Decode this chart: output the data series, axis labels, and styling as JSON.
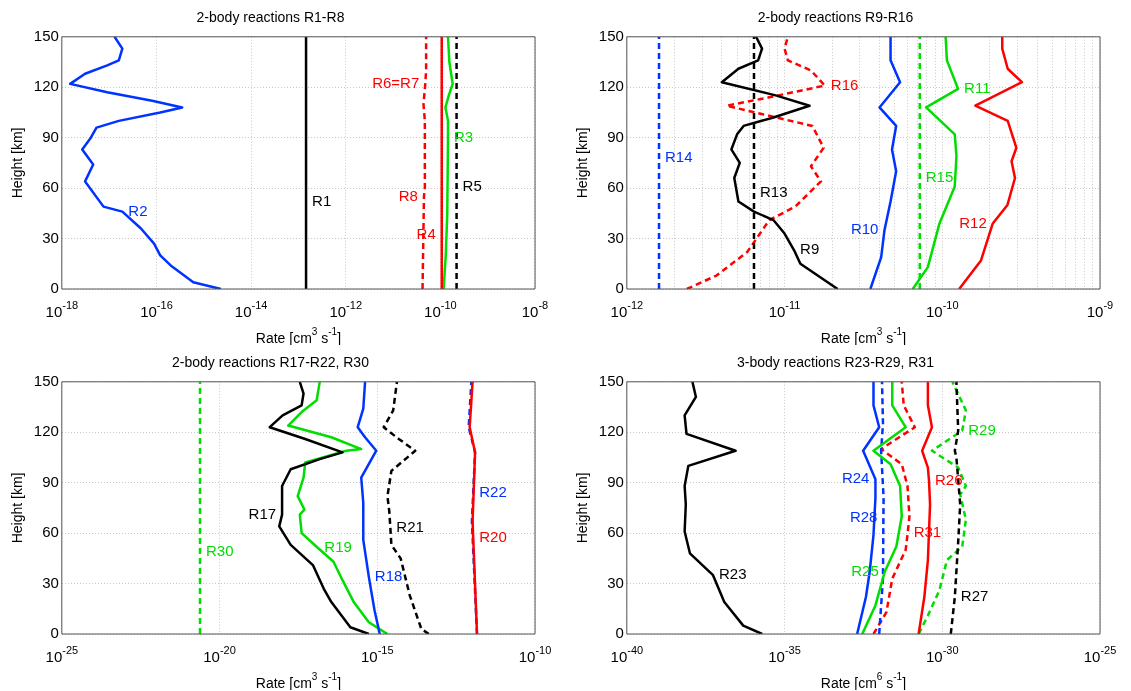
{
  "chart_data": [
    {
      "type": "line",
      "title": "2-body reactions R1-R8",
      "xlabel": "Rate [cm$^{3}$ s$^{-1}$]",
      "ylabel": "Height [km]",
      "log": "x",
      "grid": true,
      "marker": "none",
      "xlim": [
        1e-18,
        1e-08
      ],
      "ylim": [
        0,
        150
      ],
      "xticks": [
        {
          "value": 1e-18,
          "label": "10$^{-18}$"
        },
        {
          "value": 1e-16,
          "label": "10$^{-16}$"
        },
        {
          "value": 1e-14,
          "label": "10$^{-14}$"
        },
        {
          "value": 1e-12,
          "label": "10$^{-12}$"
        },
        {
          "value": 1e-10,
          "label": "10$^{-10}$"
        },
        {
          "value": 1e-08,
          "label": "10$^{-8}$"
        }
      ],
      "yticks": [
        0,
        30,
        60,
        90,
        120,
        150
      ],
      "series": [
        {
          "color": "#0033ff",
          "line_style": "solid",
          "x": [
            2.3e-15,
            6e-16,
            2e-16,
            1.2e-16,
            8.9e-17,
            4.7e-17,
            1.9e-17,
            7.6e-18,
            3.1e-18,
            4.6e-18,
            2.7e-18,
            4.1e-18,
            5.4e-18,
            1.6e-17,
            1.2e-16,
            3.5e-16,
            8.1e-17,
            9.1e-18,
            1.5e-18,
            3.1e-18,
            9.1e-18,
            1.6e-17,
            1.9e-17,
            1.3e-17
          ],
          "values": [
            0,
            4,
            14,
            20,
            27,
            36,
            46,
            49,
            64,
            74,
            83,
            90,
            96,
            100,
            105,
            108,
            112,
            117,
            122,
            128,
            133,
            136,
            143,
            150
          ]
        },
        {
          "color": "#000000",
          "line_style": "solid",
          "x": [
            1.45e-13,
            1.45e-13,
            1.45e-13
          ],
          "values": [
            0,
            52,
            150
          ]
        },
        {
          "color": "#ff0000",
          "line_style": "dashed",
          "x": [
            4.2e-11,
            4.5e-11,
            4.7e-11,
            4.7e-11,
            4.4e-11,
            4.8e-11,
            5e-11,
            5e-11
          ],
          "values": [
            0,
            55,
            60,
            100,
            110,
            122,
            130,
            150
          ]
        },
        {
          "color": "#ff0000",
          "line_style": "solid",
          "x": [
            1.07e-10,
            1.07e-10,
            1.07e-10
          ],
          "values": [
            0,
            32,
            150
          ]
        },
        {
          "color": "#00dd00",
          "line_style": "solid",
          "x": [
            1.17e-10,
            1.3e-10,
            1.4e-10,
            1.45e-10,
            1.45e-10,
            1.28e-10,
            1.5e-10,
            1.82e-10,
            1.55e-10,
            1.45e-10
          ],
          "values": [
            0,
            20,
            45,
            90,
            100,
            108,
            115,
            122,
            135,
            150
          ]
        },
        {
          "color": "#000000",
          "line_style": "dashed",
          "x": [
            2.2e-10,
            2.2e-10,
            2.2e-10
          ],
          "values": [
            0,
            61,
            150
          ]
        }
      ],
      "annotations": [
        {
          "text": "R2",
          "x": 1.9e-17,
          "y": 46
        },
        {
          "text": "R1",
          "x": 1.45e-13,
          "y": 52
        },
        {
          "text": "R8",
          "x": 4.5e-11,
          "y": 55
        },
        {
          "text": "R4",
          "x": 1.07e-10,
          "y": 32
        },
        {
          "text": "R6=R7",
          "x": 4.8e-11,
          "y": 122
        },
        {
          "text": "R3",
          "x": 1.45e-10,
          "y": 90
        },
        {
          "text": "R5",
          "x": 2.2e-10,
          "y": 61
        }
      ]
    },
    {
      "type": "line",
      "title": "2-body reactions R9-R16",
      "xlabel": "Rate [cm$^{3}$ s$^{-1}$]",
      "ylabel": "Height [km]",
      "log": "x",
      "grid": true,
      "marker": "none",
      "xlim": [
        1e-12,
        1e-09
      ],
      "ylim": [
        0,
        150
      ],
      "xticks": [
        {
          "value": 1e-12,
          "label": "10$^{-12}$"
        },
        {
          "value": 2e-12,
          "label": null
        },
        {
          "value": 3e-12,
          "label": null
        },
        {
          "value": 4e-12,
          "label": null
        },
        {
          "value": 5e-12,
          "label": null
        },
        {
          "value": 6e-12,
          "label": null
        },
        {
          "value": 7e-12,
          "label": null
        },
        {
          "value": 8e-12,
          "label": null
        },
        {
          "value": 9e-12,
          "label": null
        },
        {
          "value": 1e-11,
          "label": "10$^{-11}$"
        },
        {
          "value": 2e-11,
          "label": null
        },
        {
          "value": 3e-11,
          "label": null
        },
        {
          "value": 4e-11,
          "label": null
        },
        {
          "value": 5e-11,
          "label": null
        },
        {
          "value": 6e-11,
          "label": null
        },
        {
          "value": 7e-11,
          "label": null
        },
        {
          "value": 8e-11,
          "label": null
        },
        {
          "value": 9e-11,
          "label": null
        },
        {
          "value": 1e-10,
          "label": "10$^{-10}$"
        },
        {
          "value": 2e-10,
          "label": null
        },
        {
          "value": 3e-10,
          "label": null
        },
        {
          "value": 4e-10,
          "label": null
        },
        {
          "value": 5e-10,
          "label": null
        },
        {
          "value": 6e-10,
          "label": null
        },
        {
          "value": 7e-10,
          "label": null
        },
        {
          "value": 8e-10,
          "label": null
        },
        {
          "value": 9e-10,
          "label": null
        },
        {
          "value": 1e-09,
          "label": "10$^{-9}$"
        }
      ],
      "yticks": [
        0,
        30,
        60,
        90,
        120,
        150
      ],
      "series": [
        {
          "color": "#000000",
          "line_style": "solid",
          "x": [
            2.17e-11,
            1.26e-11,
            1.15e-11,
            1e-11,
            8.5e-12,
            6.4e-12,
            5.1e-12,
            4.8e-12,
            5.2e-12,
            4.6e-12,
            5e-12,
            5.5e-12,
            8.5e-12,
            1.44e-11,
            8.9e-12,
            4e-12,
            5.1e-12,
            6.8e-12,
            7.2e-12,
            6.6e-12
          ],
          "values": [
            0,
            15,
            23,
            33,
            41,
            46,
            52,
            66,
            75,
            83,
            92,
            97,
            102,
            109,
            115,
            123,
            131,
            136,
            143,
            150
          ]
        },
        {
          "color": "#0033ff",
          "line_style": "solid",
          "x": [
            3.5e-11,
            4.1e-11,
            4.3e-11,
            4.7e-11,
            5.1e-11,
            4.8e-11,
            5.1e-11,
            4e-11,
            5.4e-11,
            4.7e-11,
            4.7e-11
          ],
          "values": [
            0,
            19,
            35,
            52,
            70,
            83,
            97,
            108,
            123,
            136,
            150
          ]
        },
        {
          "color": "#00dd00",
          "line_style": "solid",
          "x": [
            6.5e-11,
            8.1e-11,
            9.6e-11,
            1.2e-10,
            1.23e-10,
            1.2e-10,
            7.9e-11,
            1.26e-10,
            1.07e-10,
            1.05e-10
          ],
          "values": [
            0,
            13,
            39,
            61,
            79,
            92,
            108,
            119,
            136,
            150
          ]
        },
        {
          "color": "#ff0000",
          "line_style": "solid",
          "x": [
            1.28e-10,
            1.76e-10,
            2.09e-10,
            2.59e-10,
            2.89e-10,
            2.75e-10,
            2.95e-10,
            2.6e-10,
            1.62e-10,
            3.2e-10,
            2.6e-10,
            2.4e-10,
            2.4e-10
          ],
          "values": [
            0,
            17,
            39,
            50,
            66,
            76,
            84,
            100,
            109,
            123,
            131,
            143,
            150
          ]
        },
        {
          "color": "#000000",
          "line_style": "dashed",
          "x": [
            6.4e-12,
            6.4e-12,
            6.4e-12
          ],
          "values": [
            0,
            57,
            150
          ]
        },
        {
          "color": "#0033ff",
          "line_style": "dashed",
          "x": [
            1.6e-12,
            1.6e-12,
            1.6e-12
          ],
          "values": [
            0,
            78,
            150
          ]
        },
        {
          "color": "#00dd00",
          "line_style": "dashed",
          "x": [
            7.2e-11,
            7.2e-11,
            7.2e-11
          ],
          "values": [
            0,
            66,
            150
          ]
        },
        {
          "color": "#ff0000",
          "line_style": "dashed",
          "x": [
            2.4e-12,
            3.7e-12,
            5.8e-12,
            8e-12,
            1.17e-11,
            1.7e-11,
            1.47e-11,
            1.77e-11,
            1.5e-11,
            8e-12,
            4.3e-12,
            8e-12,
            1.8e-11,
            1.47e-11,
            1.05e-11,
            1e-11,
            1.05e-11
          ],
          "values": [
            0,
            8,
            22,
            41,
            49,
            64,
            73,
            84,
            97,
            103,
            109,
            114,
            121,
            130,
            136,
            143,
            150
          ]
        }
      ],
      "annotations": [
        {
          "text": "R14",
          "x": 1.6e-12,
          "y": 78
        },
        {
          "text": "R13",
          "x": 6.4e-12,
          "y": 57
        },
        {
          "text": "R9",
          "x": 1.15e-11,
          "y": 23
        },
        {
          "text": "R16",
          "x": 1.8e-11,
          "y": 121
        },
        {
          "text": "R10",
          "x": 4.3e-11,
          "y": 35
        },
        {
          "text": "R15",
          "x": 7.2e-11,
          "y": 66
        },
        {
          "text": "R11",
          "x": 1.26e-10,
          "y": 119
        },
        {
          "text": "R12",
          "x": 2.09e-10,
          "y": 39
        }
      ]
    },
    {
      "type": "line",
      "title": "2-body reactions R17-R22, R30",
      "xlabel": "Rate [cm$^{3}$ s$^{-1}$]",
      "ylabel": "Height [km]",
      "log": "x",
      "grid": true,
      "marker": "none",
      "xlim": [
        1e-25,
        1e-10
      ],
      "ylim": [
        0,
        150
      ],
      "xticks": [
        {
          "value": 1e-25,
          "label": "10$^{-25}$"
        },
        {
          "value": 1e-20,
          "label": "10$^{-20}$"
        },
        {
          "value": 1e-15,
          "label": "10$^{-15}$"
        },
        {
          "value": 1e-10,
          "label": "10$^{-10}$"
        }
      ],
      "yticks": [
        0,
        30,
        60,
        90,
        120,
        150
      ],
      "series": [
        {
          "color": "#000000",
          "line_style": "solid",
          "x": [
            5.4e-16,
            1.4e-16,
            3.5e-17,
            2e-17,
            9.1e-18,
            1.8e-18,
            7.8e-19,
            9.6e-19,
            9.6e-19,
            1.8e-18,
            1.5e-17,
            7.9e-17,
            5.2e-18,
            3.9e-19,
            1e-18,
            4e-18,
            4.6e-18,
            3.5e-18
          ],
          "values": [
            0,
            4,
            19,
            27,
            41,
            53,
            64,
            71,
            88,
            98,
            104,
            108,
            116,
            123,
            130,
            136,
            143,
            150
          ]
        },
        {
          "color": "#0033ff",
          "line_style": "solid",
          "x": [
            1.2e-15,
            8.2e-16,
            5.4e-16,
            3.6e-16,
            3.6e-16,
            3.1e-16,
            9.3e-16,
            4.1e-16,
            2.4e-16,
            3.6e-16,
            4.1e-16
          ],
          "values": [
            0,
            14,
            34,
            56,
            78,
            93,
            109,
            117,
            123,
            134,
            150
          ]
        },
        {
          "color": "#00dd00",
          "line_style": "solid",
          "x": [
            2.1e-15,
            5.4e-16,
            1.8e-16,
            7.9e-17,
            4.1e-17,
            1.35e-17,
            4e-18,
            3.5e-18,
            4.9e-18,
            3e-18,
            4.6e-18,
            5.2e-18,
            1.05e-16,
            3.1e-16,
            3.5e-17,
            1.5e-18,
            4e-18,
            1.2e-17,
            1.5e-17
          ],
          "values": [
            0,
            7,
            19,
            32,
            43,
            51,
            60,
            71,
            74,
            82,
            93,
            102,
            109,
            110,
            117,
            124,
            132,
            139,
            150
          ]
        },
        {
          "color": "#ff0000",
          "line_style": "solid",
          "x": [
            1.45e-12,
            1.1e-12,
            1.05e-12,
            1.26e-12,
            8.5e-13,
            1.05e-12
          ],
          "values": [
            0,
            57,
            67,
            108,
            123,
            150
          ]
        },
        {
          "color": "#000000",
          "line_style": "dashed",
          "x": [
            4.3e-14,
            2.5e-14,
            1.07e-14,
            5.5e-15,
            2.8e-15,
            2.6e-15,
            2.4e-15,
            2.1e-15,
            2.8e-15,
            1.6e-14,
            4.8e-15,
            1.6e-15,
            3.2e-15,
            4.2e-15
          ],
          "values": [
            0,
            3,
            23,
            45,
            53,
            63,
            73,
            82,
            97,
            109,
            116,
            123,
            133,
            150
          ]
        },
        {
          "color": "#0033ff",
          "line_style": "dashed",
          "x": [
            1.45e-12,
            1e-12,
            1.1e-12,
            1.26e-12,
            7.9e-13,
            9.6e-13
          ],
          "values": [
            0,
            67,
            84,
            108,
            123,
            150
          ]
        },
        {
          "color": "#00dd00",
          "line_style": "dashed",
          "x": [
            2.4e-21,
            2.4e-21,
            2.4e-21
          ],
          "values": [
            0,
            49,
            150
          ]
        }
      ],
      "annotations": [
        {
          "text": "R30",
          "x": 2.4e-21,
          "y": 49
        },
        {
          "text": "R17",
          "x": 9.6e-19,
          "y": 71
        },
        {
          "text": "R19",
          "x": 1.35e-17,
          "y": 51
        },
        {
          "text": "R18",
          "x": 5.4e-16,
          "y": 34
        },
        {
          "text": "R21",
          "x": 2.6e-15,
          "y": 63
        },
        {
          "text": "R22",
          "x": 1.1e-12,
          "y": 84
        },
        {
          "text": "R20",
          "x": 1.1e-12,
          "y": 57
        }
      ]
    },
    {
      "type": "line",
      "title": "3-body reactions R23-R29, R31",
      "xlabel": "Rate [cm$^{6}$ s$^{-1}$]",
      "ylabel": "Height [km]",
      "log": "x",
      "grid": true,
      "marker": "none",
      "xlim": [
        1e-40,
        1e-25
      ],
      "ylim": [
        0,
        150
      ],
      "xticks": [
        {
          "value": 1e-40,
          "label": "10$^{-40}$"
        },
        {
          "value": 1e-35,
          "label": "10$^{-35}$"
        },
        {
          "value": 1e-30,
          "label": "10$^{-30}$"
        },
        {
          "value": 1e-25,
          "label": "10$^{-25}$"
        }
      ],
      "yticks": [
        0,
        30,
        60,
        90,
        120,
        150
      ],
      "series": [
        {
          "color": "#000000",
          "line_style": "solid",
          "x": [
            1.95e-36,
            4.9e-37,
            1.23e-37,
            5.4e-38,
            1e-38,
            6.8e-39,
            7.4e-39,
            6.8e-39,
            8.9e-39,
            2.8e-37,
            7.8e-39,
            6.8e-39,
            1.55e-38,
            1.2e-38
          ],
          "values": [
            0,
            5,
            19,
            35,
            48,
            61,
            77,
            88,
            100,
            109,
            119,
            130,
            141,
            150
          ]
        },
        {
          "color": "#0033ff",
          "line_style": "solid",
          "x": [
            2e-33,
            3.8e-33,
            5e-33,
            6.6e-33,
            7.6e-33,
            7.6e-33,
            3.1e-33,
            1e-32,
            6.6e-33,
            6.6e-33
          ],
          "values": [
            0,
            22,
            37,
            59,
            81,
            92,
            109,
            123,
            136,
            150
          ]
        },
        {
          "color": "#00dd00",
          "line_style": "solid",
          "x": [
            2.9e-33,
            7.6e-33,
            1.5e-32,
            3.5e-32,
            5.2e-32,
            4.6e-32,
            2.3e-32,
            6.6e-33,
            6.9e-32,
            2.6e-32,
            2.6e-32
          ],
          "values": [
            0,
            17,
            37,
            52,
            70,
            88,
            101,
            109,
            123,
            136,
            150
          ]
        },
        {
          "color": "#ff0000",
          "line_style": "solid",
          "x": [
            1.78e-31,
            2.7e-31,
            3.5e-31,
            4.1e-31,
            3.8e-31,
            3.5e-31,
            2.3e-31,
            4.7e-31,
            3.5e-31,
            3.5e-31
          ],
          "values": [
            0,
            22,
            44,
            77,
            91,
            99,
            109,
            123,
            136,
            150
          ]
        },
        {
          "color": "#000000",
          "line_style": "dashed",
          "x": [
            1.86e-30,
            2.5e-30,
            3.2e-30,
            3.7e-30,
            2.8e-30,
            2.5e-30,
            3.2e-30,
            2.8e-30
          ],
          "values": [
            0,
            22,
            55,
            77,
            105,
            109,
            121,
            150
          ]
        },
        {
          "color": "#0033ff",
          "line_style": "dashed",
          "x": [
            1e-32,
            1.32e-32,
            1.36e-32,
            1.38e-32,
            1.15e-32,
            1.32e-32,
            1.23e-32
          ],
          "values": [
            0,
            33,
            69,
            81,
            109,
            125,
            150
          ]
        },
        {
          "color": "#00dd00",
          "line_style": "dashed",
          "x": [
            1.78e-31,
            3.5e-31,
            8.1e-31,
            1.41e-30,
            4.3e-30,
            5.6e-30,
            3.7e-30,
            5.6e-30,
            3.2e-30,
            4.7e-31,
            4.3e-30,
            5.6e-30,
            2.1e-30
          ],
          "values": [
            0,
            11,
            26,
            44,
            52,
            68,
            83,
            88,
            99,
            109,
            121,
            133,
            150
          ]
        },
        {
          "color": "#ff0000",
          "line_style": "dashed",
          "x": [
            6.6e-33,
            1.7e-32,
            2.6e-32,
            6.9e-32,
            8e-32,
            9.1e-32,
            7.9e-32,
            5.2e-32,
            1.15e-32,
            1.35e-31,
            6e-32,
            5.2e-32
          ],
          "values": [
            0,
            13,
            33,
            50,
            60,
            70,
            88,
            101,
            110,
            123,
            136,
            150
          ]
        }
      ],
      "annotations": [
        {
          "text": "R23",
          "x": 5.4e-38,
          "y": 35
        },
        {
          "text": "R24",
          "x": 7.6e-33,
          "y": 92
        },
        {
          "text": "R28",
          "x": 1.36e-32,
          "y": 69
        },
        {
          "text": "R25",
          "x": 1.5e-32,
          "y": 37
        },
        {
          "text": "R31",
          "x": 8e-32,
          "y": 60
        },
        {
          "text": "R26",
          "x": 3.8e-31,
          "y": 91
        },
        {
          "text": "R27",
          "x": 2.5e-30,
          "y": 22
        },
        {
          "text": "R29",
          "x": 4.3e-30,
          "y": 121
        }
      ]
    }
  ]
}
